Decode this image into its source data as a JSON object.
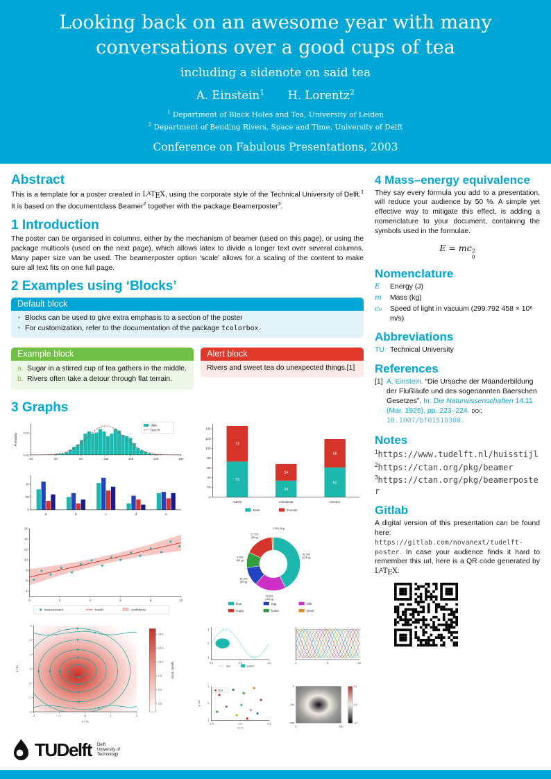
{
  "theme": {
    "primary": "#00A6D6",
    "chart_teal": "#1CB8AE",
    "chart_red": "#D5342B",
    "example_green": "#71BF44",
    "alert_red": "#E0392B"
  },
  "header": {
    "title_line1": "Looking back on an awesome year with many",
    "title_line2": "conversations over a good cups of tea",
    "subtitle": "including a sidenote on said tea",
    "authors": [
      {
        "name": "A. Einstein",
        "sup": "1"
      },
      {
        "name": "H. Lorentz",
        "sup": "2"
      }
    ],
    "affiliations": [
      {
        "sup": "1",
        "text": "Department of Black Holes and Tea, University of Leiden"
      },
      {
        "sup": "2",
        "text": "Department of Bending Rivers, Space and Time, University of Delft"
      }
    ],
    "conference": "Conference on Fabulous Presentations, 2003"
  },
  "abstract": {
    "heading": "Abstract",
    "segments": [
      {
        "t": "This is a template for a poster created in "
      },
      {
        "t": "LaTeX",
        "c": "latex"
      },
      {
        "t": ", using the corporate style of the Technical University of Delft."
      },
      {
        "t": "1",
        "sup": true
      },
      {
        "t": " It is based on the documentclass Beamer"
      },
      {
        "t": "2",
        "sup": true
      },
      {
        "t": " together with the package Beamerposter"
      },
      {
        "t": "3",
        "sup": true
      },
      {
        "t": "."
      }
    ]
  },
  "introduction": {
    "heading": "1 Introduction",
    "text": "The poster can be organised in columns, either by the mechanism of beamer (used on this page), or using the package multicols (used on the next page), which allows latex to divide a longer text over several columns. Many paper size van be used. The beamerposter option ‘scale’ allows for a scaling of the content to make sure all text fits on one full page."
  },
  "blocks": {
    "heading": "2 Examples using ‘Blocks’",
    "default_block": {
      "title": "Default block",
      "bullets": [
        [
          {
            "t": "Blocks can be used to give extra emphasis to a section of the poster"
          }
        ],
        [
          {
            "t": "For customization, refer to the documentation of the package "
          },
          {
            "t": "tcolorbox",
            "c": "mono"
          },
          {
            "t": "."
          }
        ]
      ]
    },
    "example_block": {
      "title": "Example block",
      "items": [
        {
          "label": "a.",
          "text": "Sugar in a stirred cup of tea gathers in the middle."
        },
        {
          "label": "b.",
          "text": "Rivers often take a detour through flat terrain."
        }
      ]
    },
    "alert_block": {
      "title": "Alert block",
      "text": "Rivers and sweet tea do unexpected things.[1]"
    }
  },
  "graphs": {
    "heading": "3 Graphs"
  },
  "mass_energy": {
    "heading": "4 Mass–energy equivalence",
    "text": "They say every formula you add to a presentation, will reduce your audience by 50 %. A simple yet effective way to mitigate this effect, is adding a nomenclature to your document, containing the symbols used in the formulae.",
    "formula": {
      "lhs": "E",
      "eq": " = ",
      "var": "mc",
      "sub": "0",
      "sup": "2"
    }
  },
  "nomenclature": {
    "heading": "Nomenclature",
    "rows": [
      {
        "symbol": "E",
        "desc": "Energy (J)"
      },
      {
        "symbol": "m",
        "desc": "Mass (kg)"
      },
      {
        "symbol": "c₀",
        "desc": "Speed of light in vacuum (299.792 458 × 10⁶ m/s)"
      }
    ]
  },
  "abbreviations": {
    "heading": "Abbreviations",
    "rows": [
      {
        "abbr": "TU",
        "desc": "Technical University"
      }
    ]
  },
  "references": {
    "heading": "References",
    "items": [
      {
        "marker": "[1]",
        "segments": [
          {
            "t": "A. Einstein. ",
            "c": "cyan"
          },
          {
            "t": "“Die Ursache der Mäanderbildung der Flußläufe und des sogenannten Baerschen Gesetzes”. "
          },
          {
            "t": "In: ",
            "c": "cyan"
          },
          {
            "t": "Die Naturwissenschaften ",
            "c": "cyan it"
          },
          {
            "t": "14.11 (Mar. 1926), pp. 223–224. ",
            "c": "cyan"
          },
          {
            "t": "doi: ",
            "c": "sc"
          },
          {
            "t": "10.1007/bf01510300.",
            "c": "mono cyanlink",
            "link": true
          }
        ]
      }
    ]
  },
  "notes": {
    "heading": "Notes",
    "items": [
      {
        "sup": "1",
        "url": "https://www.tudelft.nl/huisstijl"
      },
      {
        "sup": "2",
        "url": "https://ctan.org/pkg/beamer"
      },
      {
        "sup": "3",
        "url": "https://ctan.org/pkg/beamerposter"
      }
    ]
  },
  "gitlab": {
    "heading": "Gitlab",
    "segments": [
      {
        "t": "A digital version of this presentation can be found here: "
      },
      {
        "t": "https://gitlab.com/novanext/tudelft-poster",
        "c": "mono gray",
        "link": true
      },
      {
        "t": ". In case your audience finds it hard to remember this url, here is a QR code generated by "
      },
      {
        "t": "LaTeX",
        "c": "latex"
      },
      {
        "t": ":"
      }
    ]
  },
  "logo": {
    "tu": "TU",
    "delft": "Delft",
    "caption_lines": [
      "Delft",
      "University of",
      "Technology"
    ]
  },
  "chart_data": [
    {
      "id": "histogram",
      "type": "histogram",
      "ylabel": "Probability",
      "x_range": [
        40,
        160
      ],
      "bin_width": 3,
      "mean": 100,
      "std": 15,
      "peak_probability": 0.0266,
      "xticks": [
        40,
        60,
        80,
        100,
        120,
        140,
        160
      ],
      "yticks": [
        0.0,
        0.02
      ],
      "legend": [
        {
          "label": "data",
          "style": "teal-bar"
        },
        {
          "label": "best fit",
          "style": "red-dashed-line"
        }
      ]
    },
    {
      "id": "grouped-bars",
      "type": "bar",
      "categories": [
        "a",
        "b",
        "c",
        "d",
        "e"
      ],
      "series": [
        {
          "color": "#1CB8AE",
          "values": [
            16,
            10,
            21,
            5,
            13
          ]
        },
        {
          "color": "#2143BF",
          "values": [
            22,
            13,
            25,
            11,
            14
          ]
        },
        {
          "color": "#D5342B",
          "values": [
            7,
            5,
            15,
            8,
            9
          ]
        },
        {
          "color": "#151B8D",
          "values": [
            12,
            8,
            18,
            4,
            13
          ]
        }
      ],
      "ylim": [
        0,
        27
      ],
      "yticks": [
        0,
        10,
        20
      ]
    },
    {
      "id": "penguins",
      "type": "stacked-bar",
      "categories": [
        "Adelie",
        "Chinstrap",
        "Gentoo"
      ],
      "series": [
        {
          "name": "Male",
          "color": "#1CB8AE",
          "values": [
            73,
            34,
            61
          ]
        },
        {
          "name": "Female",
          "color": "#D5342B",
          "values": [
            73,
            34,
            58
          ]
        }
      ],
      "ylim": [
        0,
        150
      ],
      "yticks": [
        0,
        20,
        40,
        60,
        80,
        100,
        120,
        140
      ],
      "legend_position": "bottom"
    },
    {
      "id": "regression",
      "type": "scatter",
      "xlim": [
        0,
        10
      ],
      "ylim": [
        3,
        16
      ],
      "xticks": [
        0,
        2,
        4,
        6,
        8,
        10
      ],
      "yticks": [
        4,
        6,
        8,
        10,
        12,
        14,
        16
      ],
      "model": {
        "intercept": 6.7,
        "slope": 0.66
      },
      "points": [
        [
          0.3,
          6.2
        ],
        [
          0.8,
          7.9
        ],
        [
          1.4,
          7.2
        ],
        [
          2.1,
          8.5
        ],
        [
          2.8,
          7.6
        ],
        [
          3.4,
          9.2
        ],
        [
          4.1,
          9.9
        ],
        [
          4.8,
          8.9
        ],
        [
          5.4,
          10.5
        ],
        [
          6.0,
          10.0
        ],
        [
          6.7,
          11.4
        ],
        [
          7.3,
          10.8
        ],
        [
          8.0,
          12.2
        ],
        [
          8.7,
          11.5
        ],
        [
          9.3,
          13.5
        ],
        [
          9.9,
          12.6
        ]
      ],
      "legend": [
        "measurement",
        "model",
        "confidence"
      ]
    },
    {
      "id": "recipe-donut",
      "type": "pie",
      "donut": true,
      "slices": [
        {
          "label": "flour",
          "grams": 225,
          "pct": 42.5,
          "color": "#1CB8AE"
        },
        {
          "label": "milk",
          "grams": 100,
          "pct": 18.9,
          "color": "#CE2FC4"
        },
        {
          "label": "egg",
          "grams": 60,
          "pct": 11.3,
          "color": "#2143BF"
        },
        {
          "label": "butter",
          "grams": 50,
          "pct": 9.4,
          "color": "#2E9E3E"
        },
        {
          "label": "sugar",
          "grams": 90,
          "pct": 17.0,
          "color": "#D5342B"
        },
        {
          "label": "yeast",
          "grams": 5,
          "pct": 0.9,
          "color": "#E08A1E"
        }
      ],
      "legend_order": [
        "flour",
        "egg",
        "milk",
        "sugar",
        "butter",
        "yeast"
      ]
    },
    {
      "id": "streamplot",
      "type": "stream",
      "xlabel": "x / m",
      "ylabel": "y / m",
      "xticks": [
        -2,
        -1,
        0,
        1,
        2
      ],
      "yticks": [
        -3,
        -2,
        -1,
        0,
        1,
        2,
        3
      ],
      "colorbar": {
        "label": "speed / (m/s)",
        "ticks": [
          2.5,
          5.0,
          7.5,
          10.0,
          12.5,
          15.0
        ]
      }
    },
    {
      "id": "small-multiples",
      "type": "grid",
      "panels": [
        {
          "kind": "line-patch",
          "xticks": [
            0.0,
            0.5,
            1.0
          ],
          "yticks": [
            -1,
            0,
            1
          ],
          "legend": [
            "line",
            "patch"
          ]
        },
        {
          "kind": "multilines",
          "xticks": [
            0,
            5,
            10
          ],
          "n_lines": 10
        },
        {
          "kind": "scatter-field",
          "xlabel": "x / m",
          "ylabel": "y / m",
          "xticks": [
            -2.5,
            0.0,
            2.5
          ],
          "legend": [
            "field"
          ],
          "points": [
            [
              -1.8,
              0.5,
              "#d62728"
            ],
            [
              -0.6,
              0.8,
              "#1f77b4"
            ],
            [
              0.3,
              0.6,
              "#2ca02c"
            ],
            [
              1.2,
              0.9,
              "#ff7f0e"
            ],
            [
              -1.2,
              -0.2,
              "#9467bd"
            ],
            [
              0.1,
              -0.1,
              "#17becf"
            ],
            [
              0.9,
              -0.4,
              "#e377c2"
            ],
            [
              1.8,
              0.2,
              "#8c564b"
            ],
            [
              -0.3,
              -0.7,
              "#bcbd22"
            ],
            [
              0.6,
              -0.9,
              "#d62728"
            ],
            [
              1.5,
              -0.6,
              "#1f77b4"
            ],
            [
              -2.0,
              -0.5,
              "#2ca02c"
            ]
          ]
        },
        {
          "kind": "image",
          "yticks": [
            0,
            100,
            200
          ],
          "xticks": [
            0,
            200
          ],
          "colorbar_ticks": [
            0.1,
            0.0,
            -0.1
          ]
        }
      ]
    }
  ]
}
